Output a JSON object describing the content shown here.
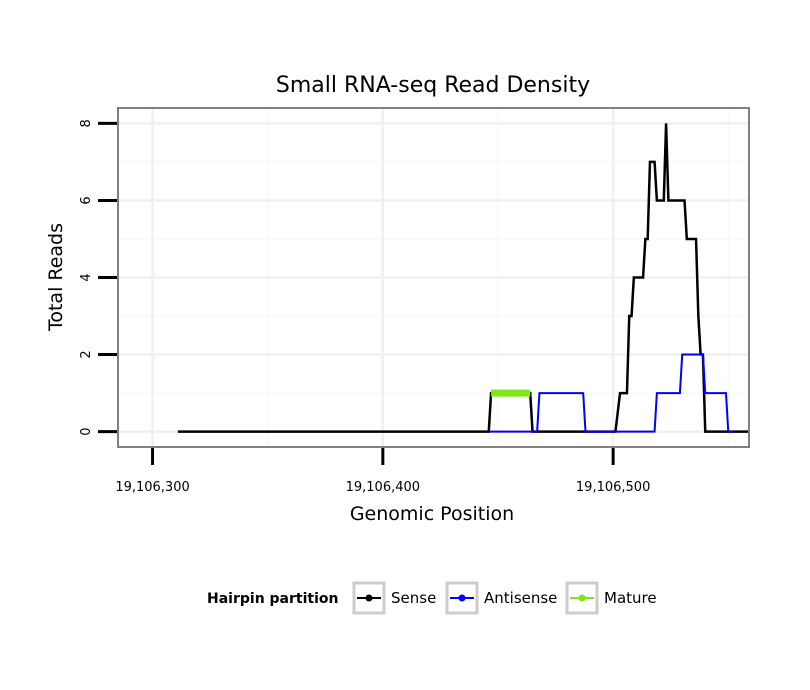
{
  "chart_data": {
    "type": "line",
    "title": "Small RNA-seq Read Density",
    "xlabel": "Genomic Position",
    "ylabel": "Total Reads",
    "xlim": [
      19106285,
      19106559
    ],
    "ylim": [
      -0.4,
      8.4
    ],
    "x_ticks": [
      19106300,
      19106400,
      19106500
    ],
    "x_tick_labels": [
      "19,106,300",
      "19,106,400",
      "19,106,500"
    ],
    "y_ticks": [
      0,
      2,
      4,
      6,
      8
    ],
    "y_tick_labels": [
      "0",
      "2",
      "4",
      "6",
      "8"
    ],
    "x_minor_gridlines": [
      19106350,
      19106450,
      19106550
    ],
    "y_minor_gridlines": [
      1,
      3,
      5,
      7
    ],
    "grid": true,
    "legend": {
      "title": "Hairpin partition",
      "position": "bottom"
    },
    "series": [
      {
        "name": "Sense",
        "color": "#000000",
        "stroke_width": 2.5,
        "points": [
          [
            19106311,
            0
          ],
          [
            19106446,
            0
          ],
          [
            19106447,
            1
          ],
          [
            19106464,
            1
          ],
          [
            19106465,
            0
          ],
          [
            19106501,
            0
          ],
          [
            19106503,
            1
          ],
          [
            19106506,
            1
          ],
          [
            19106507,
            3
          ],
          [
            19106508,
            3
          ],
          [
            19106509,
            4
          ],
          [
            19106513,
            4
          ],
          [
            19106514,
            5
          ],
          [
            19106515,
            5
          ],
          [
            19106516,
            7
          ],
          [
            19106518,
            7
          ],
          [
            19106519,
            6
          ],
          [
            19106522,
            6
          ],
          [
            19106523,
            8
          ],
          [
            19106524,
            6
          ],
          [
            19106531,
            6
          ],
          [
            19106532,
            5
          ],
          [
            19106536,
            5
          ],
          [
            19106537,
            3
          ],
          [
            19106538,
            2
          ],
          [
            19106539,
            2
          ],
          [
            19106540,
            0
          ],
          [
            19106559,
            0
          ]
        ]
      },
      {
        "name": "Antisense",
        "color": "#0000ff",
        "stroke_width": 2,
        "points": [
          [
            19106446,
            0
          ],
          [
            19106467,
            0
          ],
          [
            19106468,
            1
          ],
          [
            19106487,
            1
          ],
          [
            19106488,
            0
          ],
          [
            19106518,
            0
          ],
          [
            19106519,
            1
          ],
          [
            19106529,
            1
          ],
          [
            19106530,
            2
          ],
          [
            19106539,
            2
          ],
          [
            19106540,
            1
          ],
          [
            19106549,
            1
          ],
          [
            19106550,
            0
          ],
          [
            19106552,
            0
          ]
        ]
      },
      {
        "name": "Mature",
        "color": "#7fe61a",
        "stroke_width": 7,
        "points": [
          [
            19106447,
            1
          ],
          [
            19106464,
            1
          ]
        ]
      }
    ]
  }
}
